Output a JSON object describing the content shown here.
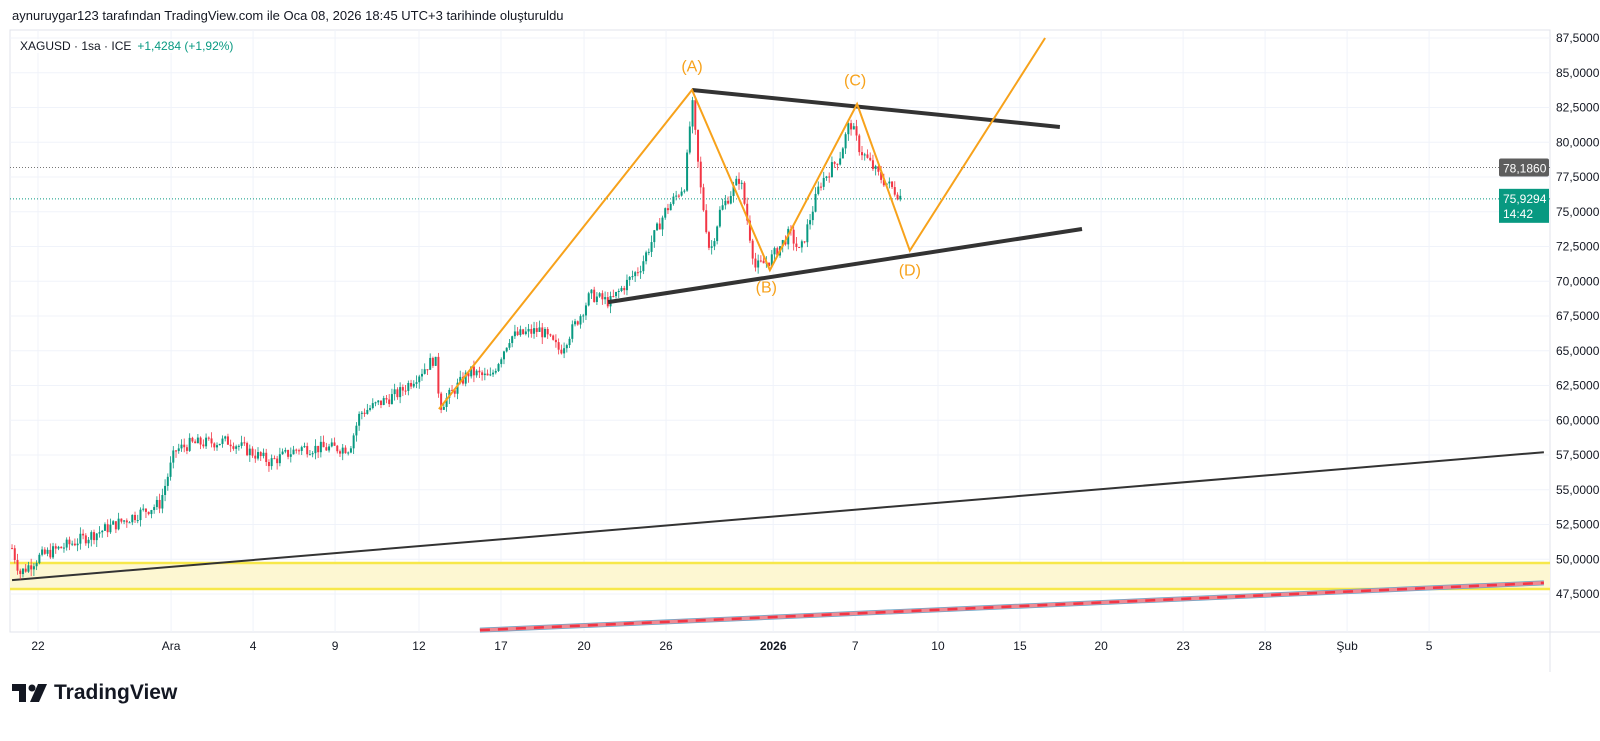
{
  "credit": "aynuruygar123 tarafından TradingView.com ile Oca 08, 2026 18:45 UTC+3 tarihinde oluşturuldu",
  "legend": {
    "symbol": "XAGUSD · 1sa · ICE",
    "change": "+1,4284 (+1,92%)"
  },
  "logo": "TradingView",
  "colors": {
    "up": "#089981",
    "down": "#f23645",
    "pattern": "#f7a21b",
    "trend": "#333333",
    "zone": "#f7e84a",
    "last": "#089981",
    "prev": "#5d5d5d"
  },
  "chart_data": {
    "type": "candlestick",
    "symbol": "XAGUSD",
    "interval": "1h",
    "ylim": [
      45,
      88.5
    ],
    "xlim": [
      -1,
      55.4
    ],
    "y_ticks": [
      "47,5000",
      "50,0000",
      "52,5000",
      "55,0000",
      "57,5000",
      "60,0000",
      "62,5000",
      "65,0000",
      "67,5000",
      "70,0000",
      "72,5000",
      "75,0000",
      "77,5000",
      "80,0000",
      "82,5000",
      "85,0000",
      "87,5000"
    ],
    "y_tick_values": [
      47.5,
      50,
      52.5,
      55,
      57.5,
      60,
      62.5,
      65,
      67.5,
      70,
      72.5,
      75,
      77.5,
      80,
      82.5,
      85,
      87.5
    ],
    "x_ticks": [
      {
        "label": "22",
        "x": 0
      },
      {
        "label": "Ara",
        "x": 4.87
      },
      {
        "label": "4",
        "x": 7.87
      },
      {
        "label": "9",
        "x": 10.87
      },
      {
        "label": "12",
        "x": 13.94
      },
      {
        "label": "17",
        "x": 16.94
      },
      {
        "label": "20",
        "x": 19.98
      },
      {
        "label": "26",
        "x": 22.98
      },
      {
        "label": "2026",
        "x": 26.9,
        "bold": true
      },
      {
        "label": "7",
        "x": 29.9
      },
      {
        "label": "10",
        "x": 32.93
      },
      {
        "label": "15",
        "x": 35.93
      },
      {
        "label": "20",
        "x": 38.9
      },
      {
        "label": "23",
        "x": 41.9
      },
      {
        "label": "28",
        "x": 44.9
      },
      {
        "label": "Şub",
        "x": 47.9
      },
      {
        "label": "5",
        "x": 50.9
      }
    ],
    "price_path": [
      [
        -0.95,
        50.8
      ],
      [
        -0.66,
        49.0
      ],
      [
        0.07,
        50.2
      ],
      [
        2.27,
        52.0
      ],
      [
        4.46,
        54.0
      ],
      [
        5.01,
        57.8
      ],
      [
        5.56,
        58.3
      ],
      [
        7.02,
        58.5
      ],
      [
        8.49,
        57.0
      ],
      [
        9.59,
        58.0
      ],
      [
        11.4,
        58.0
      ],
      [
        11.78,
        60.5
      ],
      [
        13.24,
        62.0
      ],
      [
        14.53,
        64.5
      ],
      [
        14.71,
        61.0
      ],
      [
        15.8,
        63.5
      ],
      [
        16.54,
        63.0
      ],
      [
        17.27,
        66.0
      ],
      [
        18.37,
        66.5
      ],
      [
        19.1,
        65.0
      ],
      [
        19.83,
        67.5
      ],
      [
        20.2,
        69.0
      ],
      [
        20.93,
        68.5
      ],
      [
        22.03,
        71.0
      ],
      [
        22.94,
        75.0
      ],
      [
        23.67,
        77.0
      ],
      [
        23.93,
        83.0
      ],
      [
        24.22,
        77.0
      ],
      [
        24.59,
        72.0
      ],
      [
        24.95,
        75.0
      ],
      [
        25.69,
        77.5
      ],
      [
        26.24,
        71.0
      ],
      [
        26.78,
        71.5
      ],
      [
        27.51,
        73.5
      ],
      [
        27.88,
        72.0
      ],
      [
        28.61,
        77.0
      ],
      [
        29.34,
        79.0
      ],
      [
        29.71,
        81.5
      ],
      [
        30.07,
        79.5
      ],
      [
        30.8,
        77.5
      ],
      [
        31.36,
        76.5
      ],
      [
        31.65,
        75.93
      ]
    ],
    "last_price": {
      "label": "75,9294",
      "value": 75.9294,
      "countdown": "14:42"
    },
    "prev_close": {
      "label": "78,1860",
      "value": 78.186
    },
    "drawings": {
      "abcd": [
        [
          14.67,
          60.8
        ],
        [
          23.93,
          83.76
        ],
        [
          26.78,
          70.8
        ],
        [
          29.97,
          82.75
        ],
        [
          31.9,
          72.2
        ],
        [
          36.85,
          87.5
        ]
      ],
      "abcd_labels": [
        {
          "text": "(A)",
          "x": 23.93,
          "y": 85.1
        },
        {
          "text": "(B)",
          "x": 26.65,
          "y": 69.2
        },
        {
          "text": "(C)",
          "x": 29.9,
          "y": 84.1
        },
        {
          "text": "(D)",
          "x": 31.9,
          "y": 70.4
        }
      ],
      "upper_trend": [
        [
          23.93,
          83.76
        ],
        [
          37.39,
          81.1
        ]
      ],
      "lower_trend": [
        [
          20.86,
          68.5
        ],
        [
          38.2,
          73.76
        ]
      ],
      "long_trend": [
        [
          -0.95,
          48.5
        ],
        [
          55.1,
          57.7
        ]
      ],
      "zone": [
        47.86,
        49.73
      ],
      "red_dashed": [
        [
          16.17,
          44.9
        ],
        [
          55.1,
          48.3
        ]
      ]
    }
  }
}
